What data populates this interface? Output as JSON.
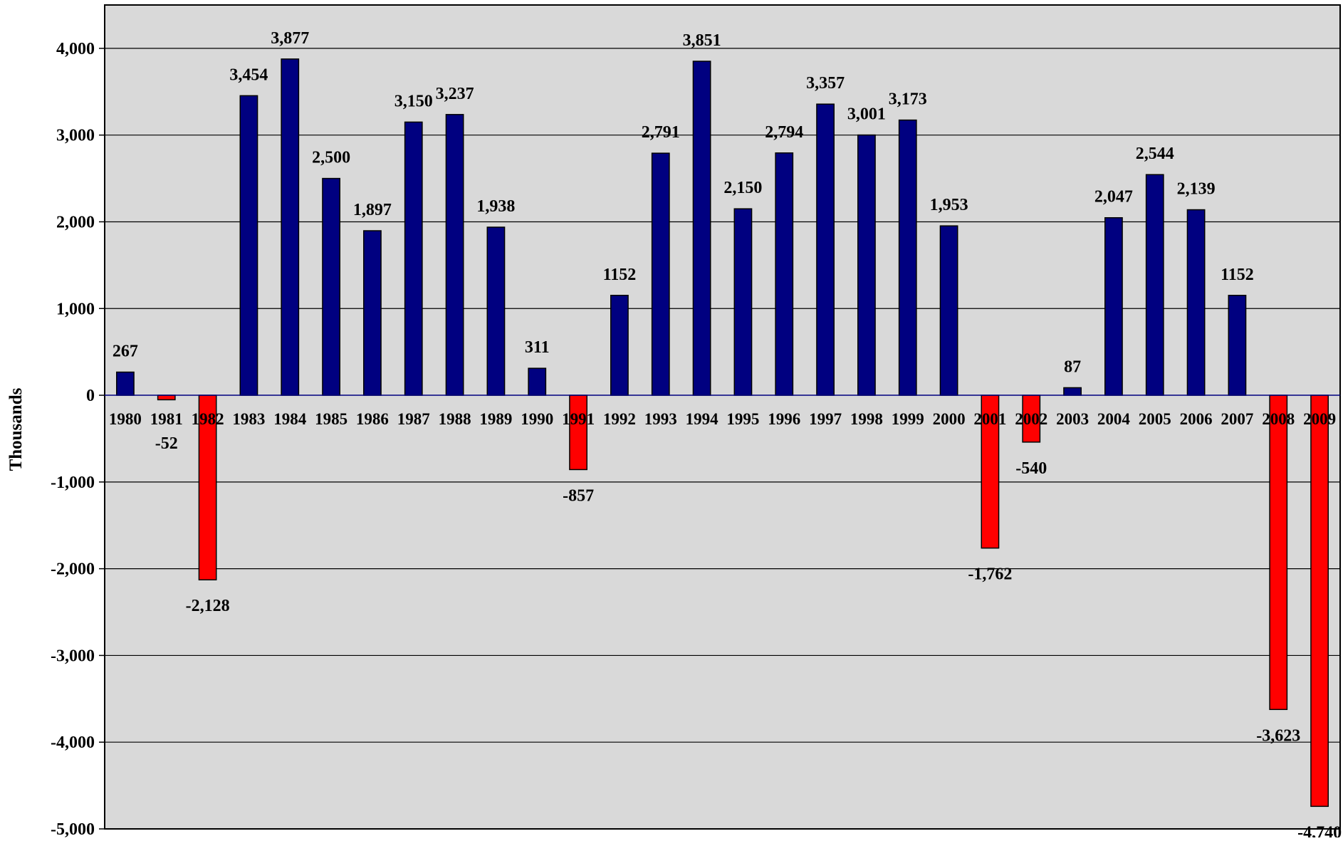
{
  "chart_data": {
    "type": "bar",
    "title": "",
    "xlabel": "",
    "ylabel": "Thousands",
    "ylim": [
      -5000,
      4500
    ],
    "yticks": [
      4000,
      3000,
      2000,
      1000,
      0,
      -1000,
      -2000,
      -3000,
      -4000,
      -5000
    ],
    "ytick_labels": [
      "4,000",
      "3,000",
      "2,000",
      "1,000",
      "0",
      "-1,000",
      "-2,000",
      "-3,000",
      "-4,000",
      "-5,000"
    ],
    "grid": true,
    "legend": "none",
    "categories": [
      "1980",
      "1981",
      "1982",
      "1983",
      "1984",
      "1985",
      "1986",
      "1987",
      "1988",
      "1989",
      "1990",
      "1991",
      "1992",
      "1993",
      "1994",
      "1995",
      "1996",
      "1997",
      "1998",
      "1999",
      "2000",
      "2001",
      "2002",
      "2003",
      "2004",
      "2005",
      "2006",
      "2007",
      "2008",
      "2009"
    ],
    "values": [
      267,
      -52,
      -2128,
      3454,
      3877,
      2500,
      1897,
      3150,
      3237,
      1938,
      311,
      -857,
      1152,
      2791,
      3851,
      2150,
      2794,
      3357,
      3001,
      3173,
      1953,
      -1762,
      -540,
      87,
      2047,
      2544,
      2139,
      1152,
      -3623,
      -4740
    ],
    "data_labels": [
      "267",
      "-52",
      "-2,128",
      "3,454",
      "3,877",
      "2,500",
      "1,897",
      "3,150",
      "3,237",
      "1,938",
      "311",
      "-857",
      "1152",
      "2,791",
      "3,851",
      "2,150",
      "2,794",
      "3,357",
      "3,001",
      "3,173",
      "1,953",
      "-1,762",
      "-540",
      "87",
      "2,047",
      "2,544",
      "2,139",
      "1152",
      "-3,623",
      "-4,740"
    ],
    "colors": {
      "positive": "#000080",
      "negative": "#ff0000",
      "plot_background": "#d9d9d9",
      "gridline": "#000000"
    }
  }
}
